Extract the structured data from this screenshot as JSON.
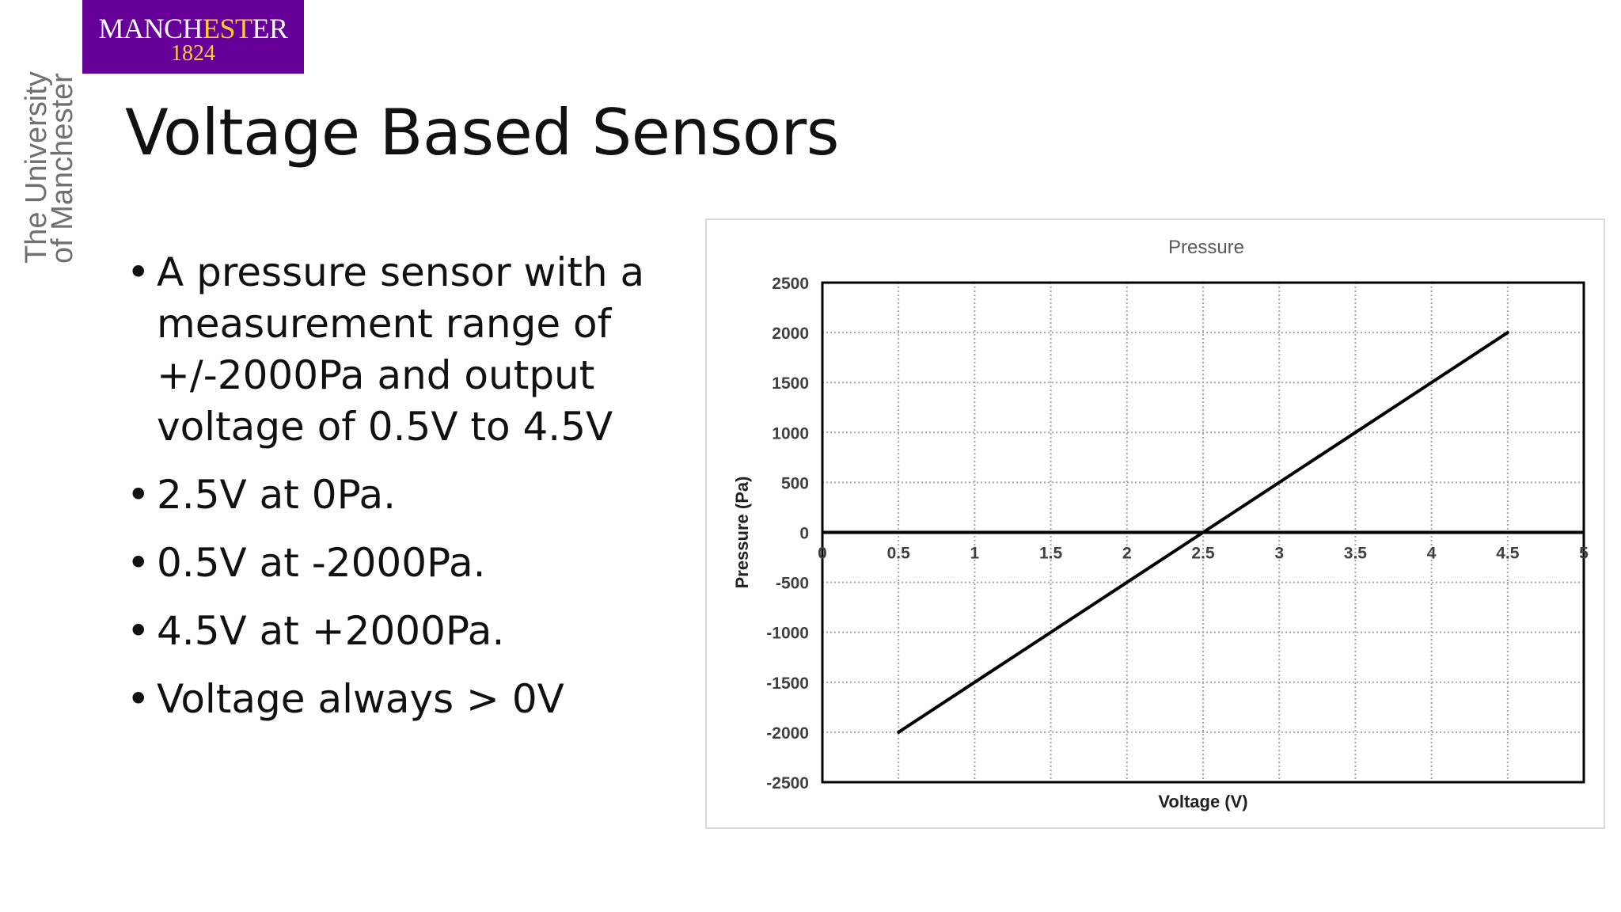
{
  "logo": {
    "word_prefix": "MANCH",
    "word_accent": "EST",
    "word_suffix": "ER",
    "year": "1824",
    "vertical_line1": "The University",
    "vertical_line2": "of Manchester",
    "colors": {
      "background": "#660099",
      "accent": "#ffcc33",
      "text": "#ffffff"
    }
  },
  "slide": {
    "title": "Voltage Based Sensors",
    "bullets": [
      "A pressure sensor with a measurement range of +/-2000Pa and output voltage of 0.5V to 4.5V",
      "2.5V at 0Pa.",
      "0.5V at -2000Pa.",
      "4.5V at +2000Pa.",
      "Voltage always > 0V"
    ]
  },
  "chart_data": {
    "type": "line",
    "title": "Pressure",
    "xlabel": "Voltage (V)",
    "ylabel": "Pressure (Pa)",
    "xlim": [
      0,
      5
    ],
    "ylim": [
      -2500,
      2500
    ],
    "x_ticks": [
      "0",
      "0.5",
      "1",
      "1.5",
      "2",
      "2.5",
      "3",
      "3.5",
      "4",
      "4.5",
      "5"
    ],
    "y_ticks": [
      "2500",
      "2000",
      "1500",
      "1000",
      "500",
      "0",
      "-500",
      "-1000",
      "-1500",
      "-2000",
      "-2500"
    ],
    "grid": true,
    "series": [
      {
        "x": [
          0.5,
          4.5
        ],
        "y": [
          -2000,
          2000
        ],
        "color": "#000000"
      }
    ]
  }
}
